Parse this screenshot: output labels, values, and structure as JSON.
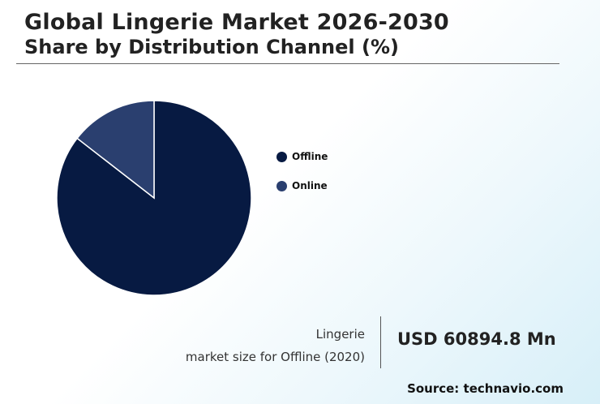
{
  "header": {
    "title": "Global Lingerie Market 2026-2030",
    "subtitle": "Share by Distribution Channel (%)"
  },
  "chart_data": {
    "type": "pie",
    "categories": [
      "Offline",
      "Online"
    ],
    "values": [
      85.5,
      14.5
    ],
    "colors": [
      "#071a42",
      "#2a3f6f"
    ],
    "legend_position": "right"
  },
  "callout": {
    "line1": "Lingerie",
    "line2": "market size for Offline (2020)",
    "value": "USD 60894.8 Mn"
  },
  "footer": {
    "source": "Source: technavio.com"
  }
}
